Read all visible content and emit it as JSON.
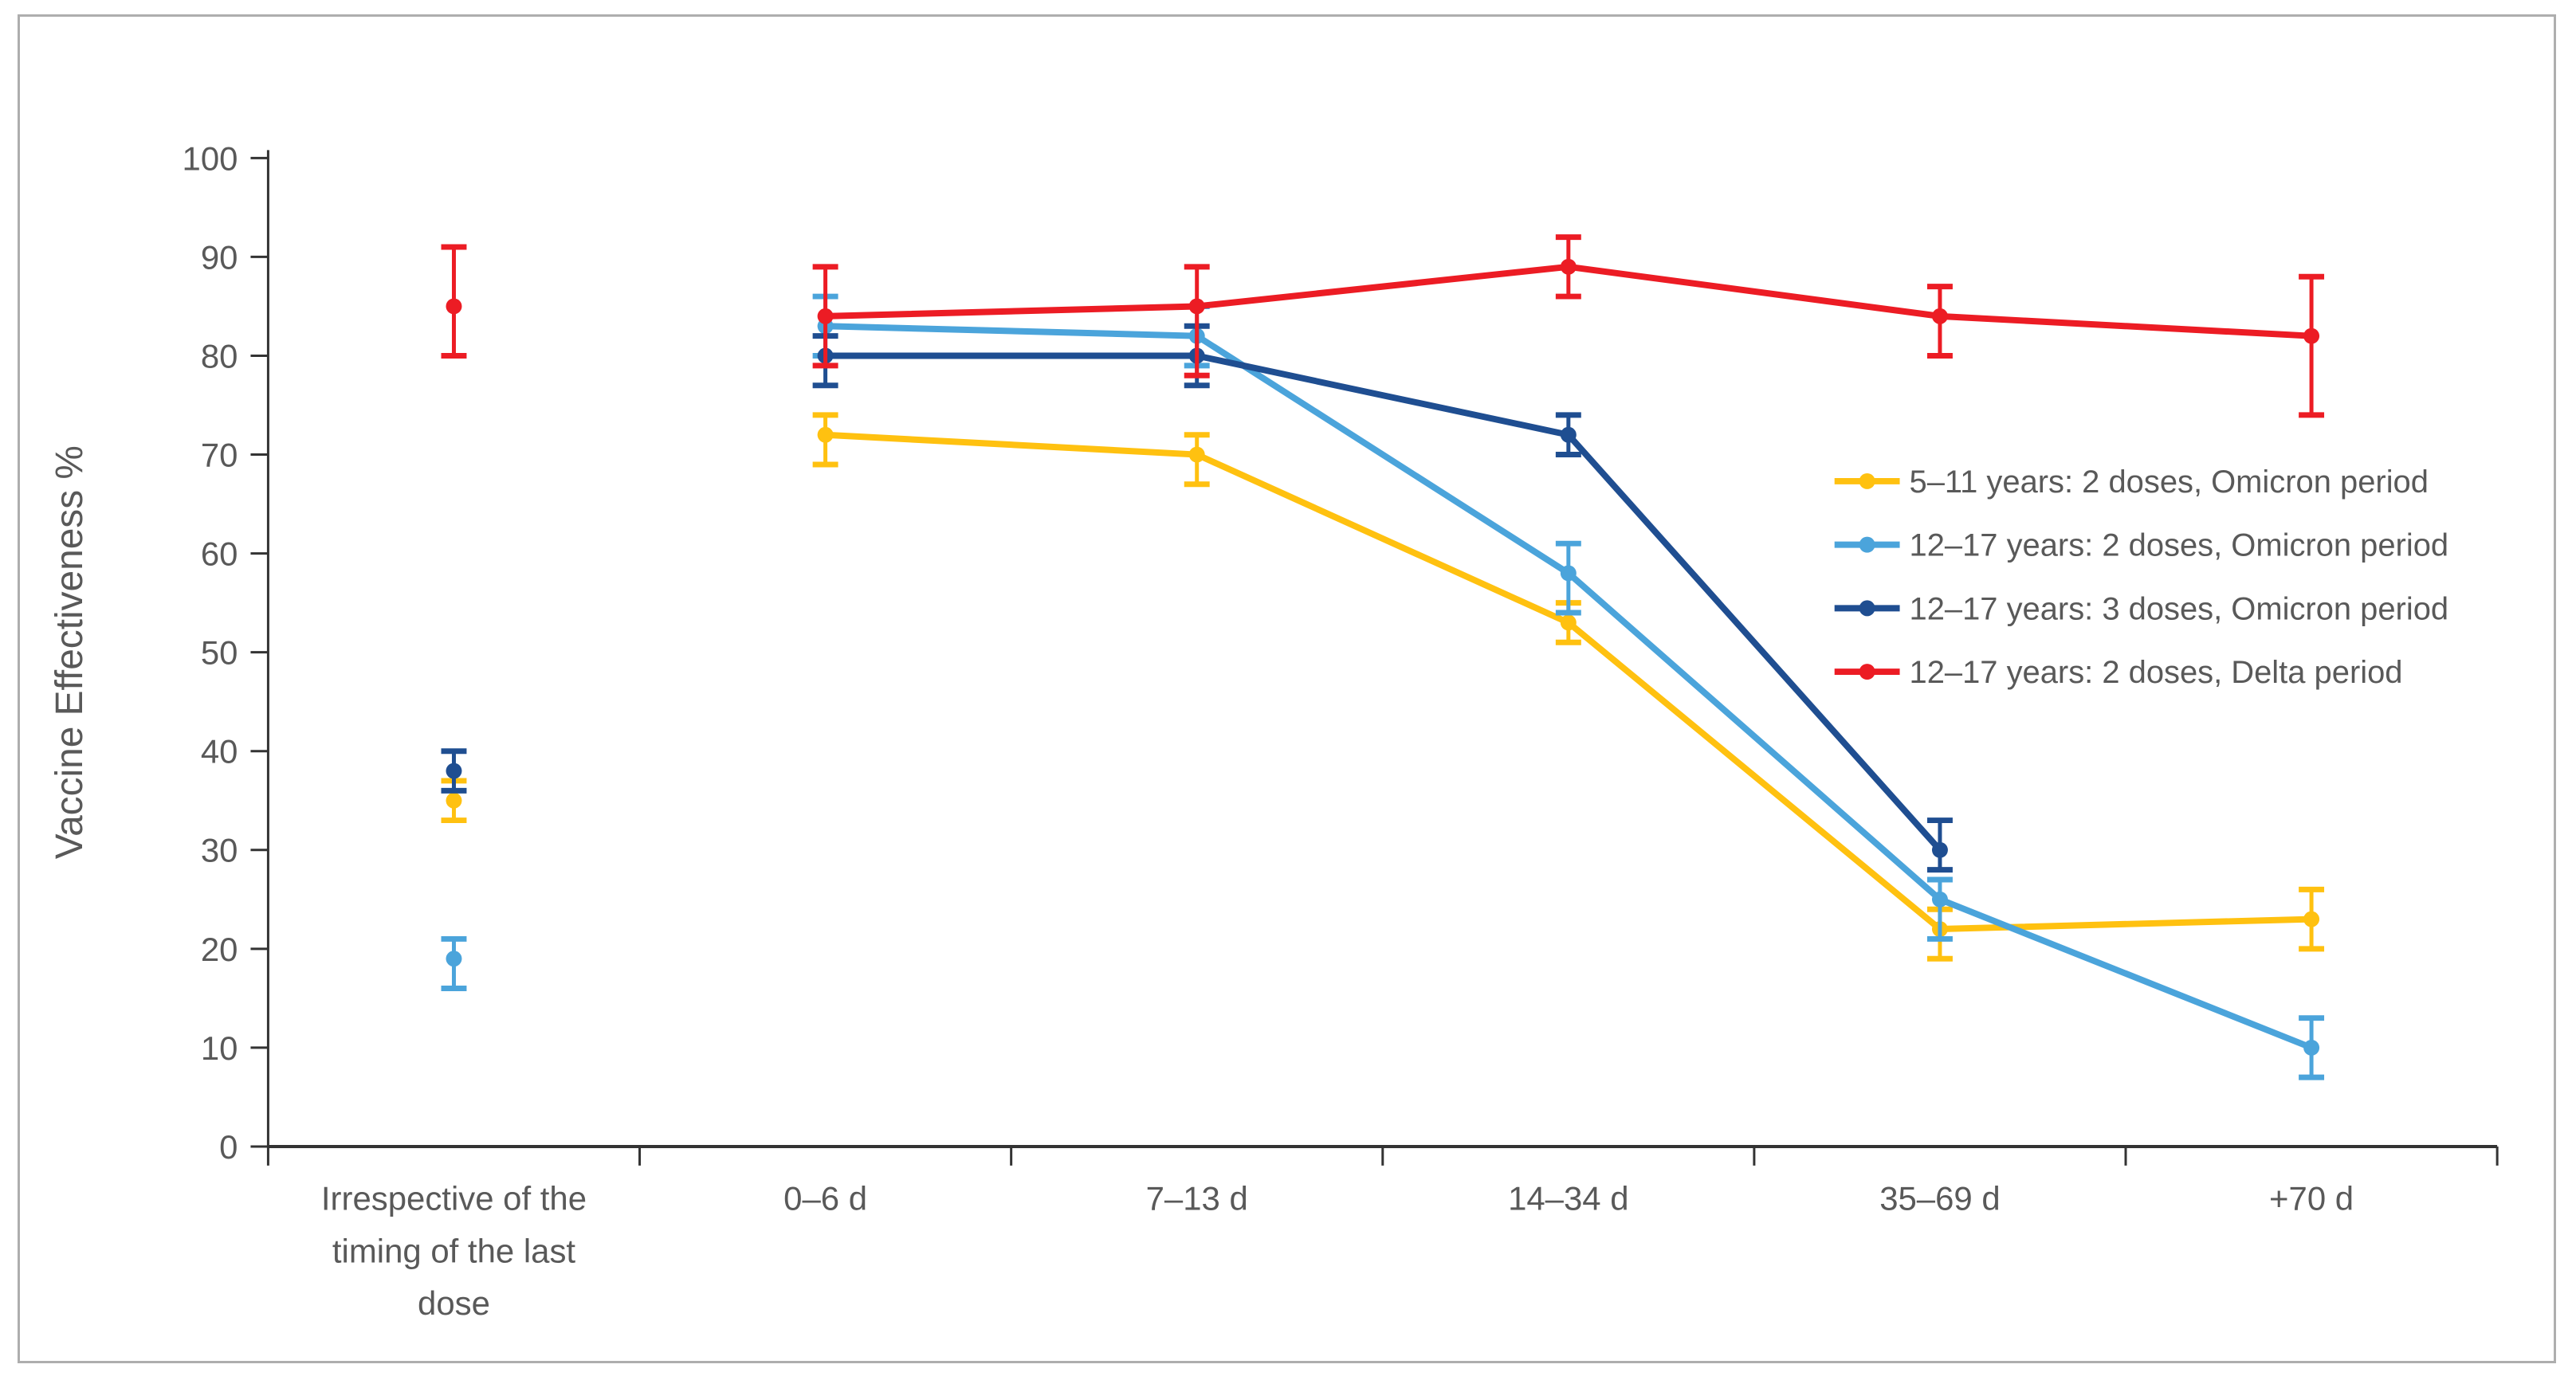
{
  "figure": {
    "background": "#ffffff",
    "border_color": "#aeaeae",
    "text_color": "#595959",
    "axis_line_color": "#333333"
  },
  "chart_data": {
    "type": "line",
    "title": "",
    "xlabel": "",
    "ylabel": "Vaccine Effectiveness %",
    "ylim": [
      0,
      100
    ],
    "ytick_step": 10,
    "yticks": [
      0,
      10,
      20,
      30,
      40,
      50,
      60,
      70,
      80,
      90,
      100
    ],
    "grid": false,
    "legend_position": "middle-right",
    "error_bars": true,
    "first_category_isolated": true,
    "categories": [
      "Irrespective of the timing of the last dose",
      "0–6 d",
      "7–13 d",
      "14–34 d",
      "35–69 d",
      "+70 d"
    ],
    "x_tick_label_lines": [
      [
        "Irrespective of the",
        "timing of the last",
        "dose"
      ],
      [
        "0–6 d"
      ],
      [
        "7–13 d"
      ],
      [
        "14–34 d"
      ],
      [
        "35–69 d"
      ],
      [
        "+70 d"
      ]
    ],
    "series": [
      {
        "name": "5–11 years: 2 doses, Omicron period",
        "color": "#FFC110",
        "values": [
          35,
          72,
          70,
          53,
          22,
          23
        ],
        "ci_low": [
          33,
          69,
          67,
          51,
          19,
          20
        ],
        "ci_high": [
          37,
          74,
          72,
          55,
          24,
          26
        ]
      },
      {
        "name": "12–17 years: 2 doses, Omicron period",
        "color": "#4BA4DB",
        "values": [
          19,
          83,
          82,
          58,
          25,
          10
        ],
        "ci_low": [
          16,
          80,
          79,
          54,
          21,
          7
        ],
        "ci_high": [
          21,
          86,
          85,
          61,
          27,
          13
        ]
      },
      {
        "name": "12–17 years: 3 doses, Omicron period",
        "color": "#1F4E91",
        "values": [
          38,
          80,
          80,
          72,
          30,
          null
        ],
        "ci_low": [
          36,
          77,
          77,
          70,
          28,
          null
        ],
        "ci_high": [
          40,
          82,
          83,
          74,
          33,
          null
        ]
      },
      {
        "name": "12–17 years: 2 doses, Delta period",
        "color": "#EC1C24",
        "values": [
          85,
          84,
          85,
          89,
          84,
          82
        ],
        "ci_low": [
          80,
          79,
          78,
          86,
          80,
          74
        ],
        "ci_high": [
          91,
          89,
          89,
          92,
          87,
          88
        ]
      }
    ]
  }
}
